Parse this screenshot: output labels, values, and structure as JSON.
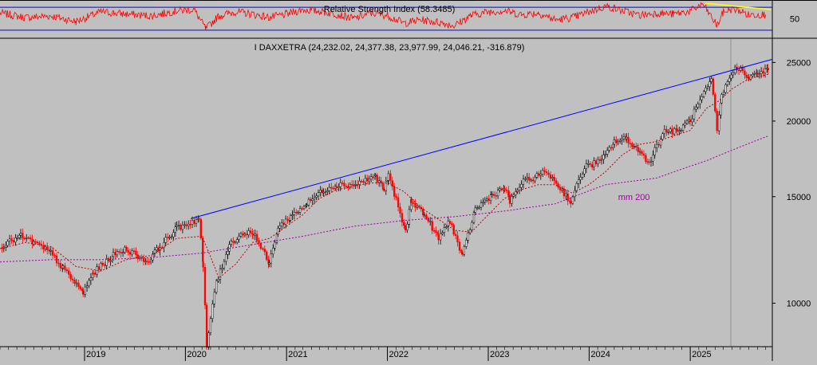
{
  "chart_data": [
    {
      "type": "line",
      "title": "Relative Strength Index (58.3485)",
      "ylim": [
        20,
        80
      ],
      "y_ticks": [
        {
          "value": 50,
          "label": "50"
        }
      ],
      "levels": [
        {
          "value": 70,
          "color": "#0000ff"
        },
        {
          "value": 30,
          "color": "#0000ff"
        }
      ],
      "series": [
        {
          "color": "#ff0000",
          "x": [
            "2018-03-01",
            "2018-06-01",
            "2018-09-01",
            "2018-12-01",
            "2019-03-01",
            "2019-06-01",
            "2019-09-01",
            "2019-12-01",
            "2020-02-01",
            "2020-03-15",
            "2020-05-01",
            "2020-07-01",
            "2020-09-01",
            "2020-11-01",
            "2021-01-01",
            "2021-03-01",
            "2021-05-01",
            "2021-07-01",
            "2021-09-01",
            "2021-11-01",
            "2022-01-01",
            "2022-03-01",
            "2022-05-01",
            "2022-07-01",
            "2022-09-01",
            "2022-11-01",
            "2023-01-01",
            "2023-03-01",
            "2023-05-01",
            "2023-07-01",
            "2023-09-01",
            "2023-11-01",
            "2024-01-01",
            "2024-03-01",
            "2024-05-01",
            "2024-07-01",
            "2024-09-01",
            "2024-11-01",
            "2025-01-01",
            "2025-02-15",
            "2025-04-08",
            "2025-05-01",
            "2025-06-01",
            "2025-07-01",
            "2025-08-01",
            "2025-09-01",
            "2025-10-01"
          ],
          "values": [
            60,
            52,
            55,
            45,
            62,
            58,
            55,
            64,
            66,
            32,
            55,
            62,
            58,
            52,
            58,
            66,
            63,
            58,
            50,
            60,
            56,
            42,
            48,
            44,
            38,
            56,
            62,
            64,
            57,
            60,
            48,
            52,
            62,
            72,
            64,
            56,
            60,
            58,
            63,
            76,
            38,
            62,
            67,
            64,
            56,
            58,
            57
          ]
        }
      ]
    },
    {
      "type": "line",
      "title": "I DAXXETRA (24,232.02, 24,377.38, 23,977.99, 24,046.21, -316.879)",
      "scale": "log",
      "ylim": [
        8500,
        27000
      ],
      "y_ticks": [
        {
          "value": 10000,
          "label": "10000"
        },
        {
          "value": 15000,
          "label": "15000"
        },
        {
          "value": 20000,
          "label": "20000"
        },
        {
          "value": 25000,
          "label": "25000"
        }
      ],
      "x_range": [
        "2018-03-01",
        "2025-10-25"
      ],
      "x_ticks": [
        {
          "date": "2019-01-01",
          "label": "2019"
        },
        {
          "date": "2020-01-01",
          "label": "2020"
        },
        {
          "date": "2021-01-01",
          "label": "2021"
        },
        {
          "date": "2022-01-01",
          "label": "2022"
        },
        {
          "date": "2023-01-01",
          "label": "2023"
        },
        {
          "date": "2024-01-01",
          "label": "2024"
        },
        {
          "date": "2025-01-01",
          "label": "2025"
        }
      ],
      "price_path": {
        "x": [
          "2018-03-01",
          "2018-05-15",
          "2018-07-01",
          "2018-09-01",
          "2018-10-15",
          "2018-12-27",
          "2019-02-01",
          "2019-04-15",
          "2019-06-01",
          "2019-08-15",
          "2019-10-01",
          "2019-12-01",
          "2020-02-19",
          "2020-03-05",
          "2020-03-18",
          "2020-04-15",
          "2020-06-08",
          "2020-07-20",
          "2020-09-02",
          "2020-10-30",
          "2020-12-01",
          "2021-01-15",
          "2021-03-15",
          "2021-05-15",
          "2021-07-01",
          "2021-09-01",
          "2021-11-18",
          "2021-12-20",
          "2022-01-05",
          "2022-03-07",
          "2022-03-29",
          "2022-05-15",
          "2022-07-05",
          "2022-08-15",
          "2022-09-29",
          "2022-11-15",
          "2023-01-15",
          "2023-03-01",
          "2023-03-20",
          "2023-05-01",
          "2023-07-31",
          "2023-10-27",
          "2023-12-15",
          "2024-02-15",
          "2024-04-01",
          "2024-05-15",
          "2024-08-05",
          "2024-09-30",
          "2024-11-15",
          "2025-01-01",
          "2025-03-18",
          "2025-04-08",
          "2025-04-25",
          "2025-06-05",
          "2025-07-10",
          "2025-08-01",
          "2025-09-01",
          "2025-10-10"
        ],
        "values": [
          12400,
          12900,
          12600,
          12100,
          11400,
          10400,
          11200,
          12000,
          12300,
          11700,
          12400,
          13300,
          13800,
          11500,
          8400,
          10500,
          12500,
          13000,
          13100,
          11600,
          13300,
          13900,
          14600,
          15400,
          15700,
          15700,
          16200,
          15400,
          16200,
          13100,
          14800,
          14000,
          12800,
          13700,
          11900,
          14300,
          15100,
          15500,
          14700,
          15800,
          16500,
          14700,
          16800,
          17200,
          18500,
          18700,
          17100,
          19300,
          19200,
          20100,
          23300,
          19200,
          22000,
          24300,
          24400,
          23500,
          24000,
          24300
        ]
      },
      "series": [
        {
          "color": "#0000ff",
          "x": [
            "2020-01-20",
            "2025-10-25"
          ],
          "values": [
            13800,
            25300
          ]
        },
        {
          "name": "mm 200",
          "color": "#a000a0",
          "x": [
            "2018-03-01",
            "2018-09-01",
            "2019-03-01",
            "2019-09-01",
            "2020-03-01",
            "2020-09-01",
            "2021-03-01",
            "2021-09-01",
            "2022-03-01",
            "2022-09-01",
            "2023-03-01",
            "2023-09-01",
            "2024-03-01",
            "2024-09-01",
            "2025-03-01",
            "2025-10-10"
          ],
          "values": [
            11700,
            11800,
            11800,
            11900,
            12100,
            12500,
            12900,
            13400,
            13700,
            13900,
            14200,
            14600,
            15700,
            16100,
            17200,
            18900
          ]
        },
        {
          "color": "#c00000",
          "x": [
            "2018-03-01",
            "2018-06-01",
            "2018-09-01",
            "2018-12-01",
            "2019-03-01",
            "2019-06-01",
            "2019-09-01",
            "2019-12-01",
            "2020-03-01",
            "2020-05-01",
            "2020-07-01",
            "2020-09-01",
            "2020-11-01",
            "2021-01-01",
            "2021-03-01",
            "2021-05-01",
            "2021-07-01",
            "2021-09-01",
            "2021-11-01",
            "2022-01-01",
            "2022-03-01",
            "2022-05-01",
            "2022-07-01",
            "2022-09-01",
            "2022-11-01",
            "2023-01-01",
            "2023-03-01",
            "2023-05-01",
            "2023-07-01",
            "2023-09-01",
            "2023-11-01",
            "2024-01-01",
            "2024-03-01",
            "2024-05-01",
            "2024-07-01",
            "2024-09-01",
            "2024-11-01",
            "2025-01-01",
            "2025-03-01",
            "2025-04-15",
            "2025-06-01",
            "2025-08-01",
            "2025-10-10"
          ],
          "values": [
            12300,
            12600,
            12400,
            11500,
            11300,
            11800,
            12000,
            12800,
            12900,
            11000,
            11600,
            12600,
            12800,
            13400,
            14000,
            14900,
            15400,
            15600,
            15800,
            15800,
            15300,
            14400,
            13800,
            13200,
            13100,
            14000,
            14900,
            15400,
            15700,
            15700,
            15200,
            15700,
            16500,
            17600,
            18300,
            18500,
            18900,
            19300,
            21000,
            21600,
            22600,
            23500,
            23900
          ]
        }
      ],
      "annotations": [
        {
          "text": "mm 200",
          "x": "2024-04-15",
          "y": 14800,
          "color": "#a000a0"
        }
      ]
    }
  ]
}
